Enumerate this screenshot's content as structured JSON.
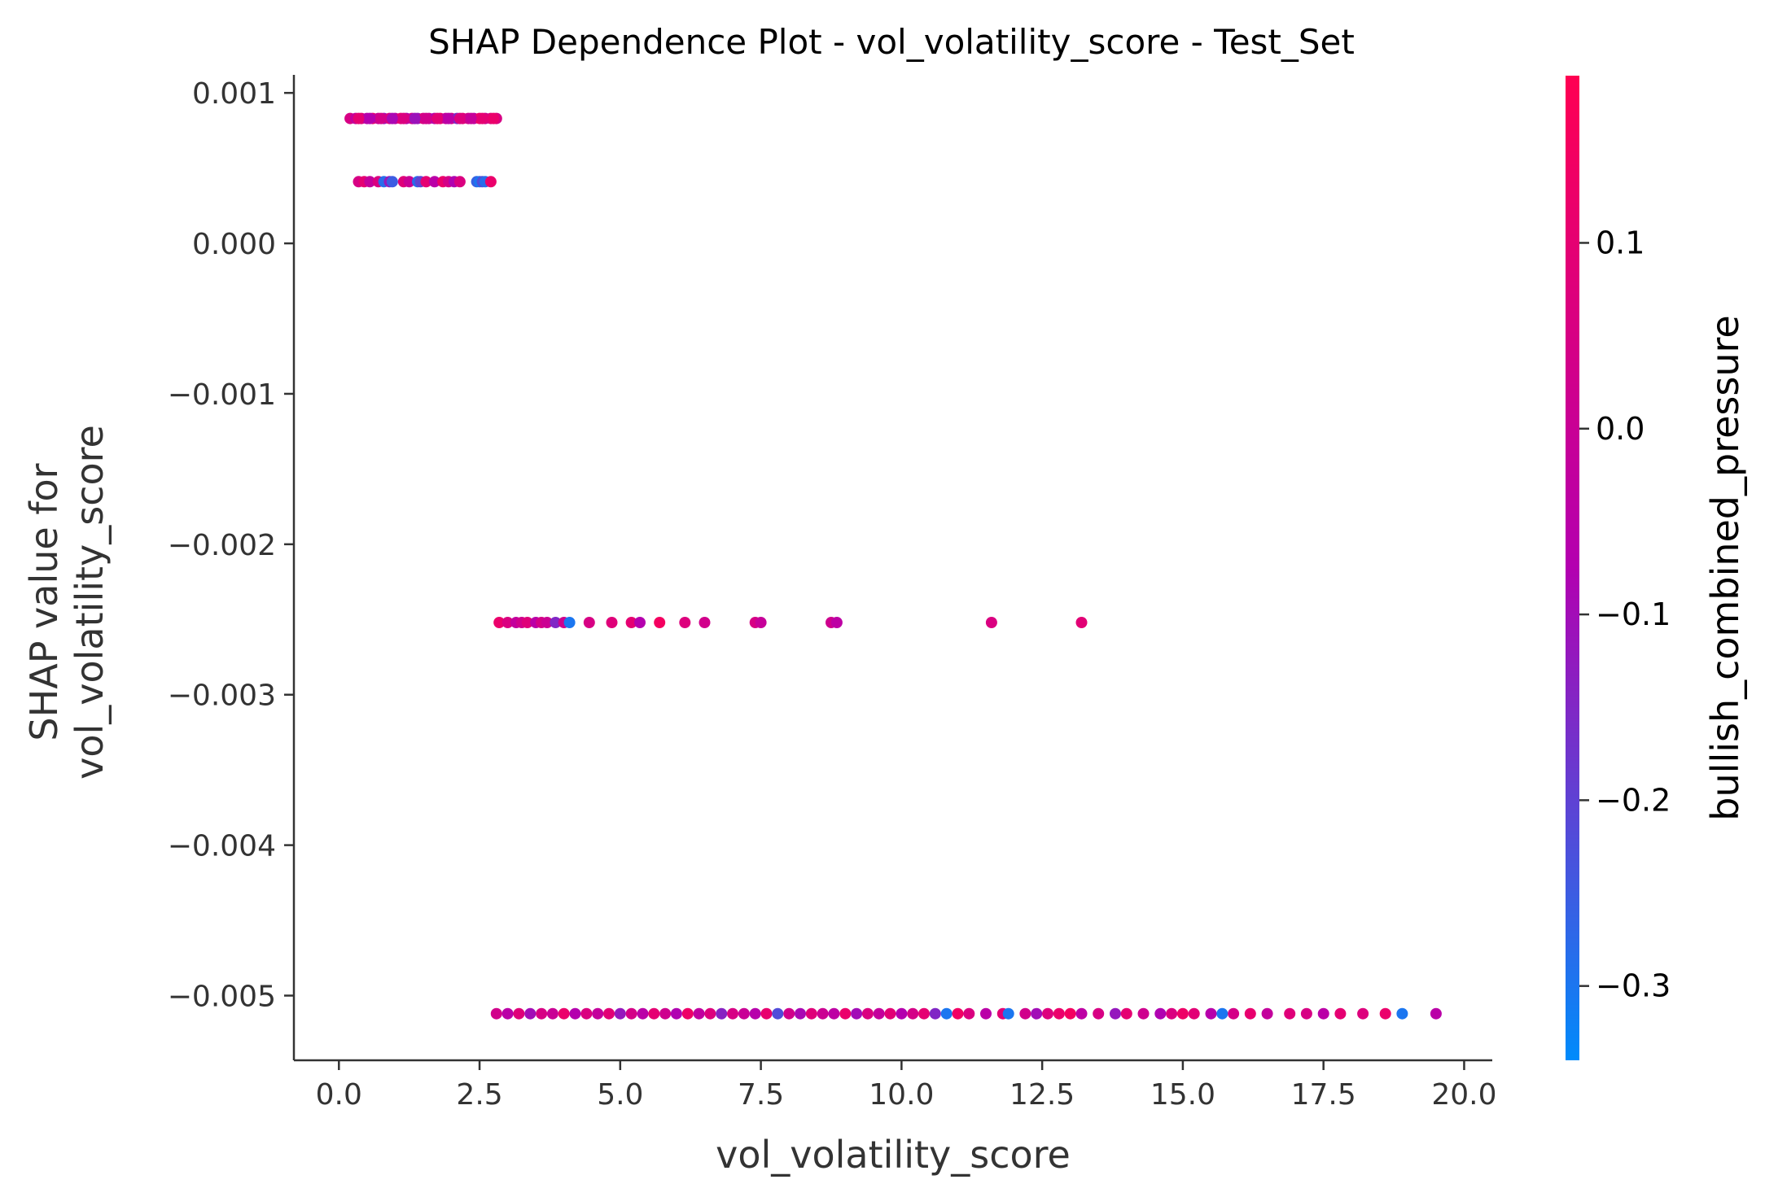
{
  "chart_data": {
    "type": "scatter",
    "title": "SHAP Dependence Plot - vol_volatility_score - Test_Set",
    "xlabel": "vol_volatility_score",
    "ylabel_lines": [
      "SHAP value for",
      "vol_volatility_score"
    ],
    "colorbar_label": "bullish_combined_pressure",
    "xlim": [
      -0.8,
      20.5
    ],
    "ylim": [
      -0.00543,
      0.00112
    ],
    "x_ticks": [
      0.0,
      2.5,
      5.0,
      7.5,
      10.0,
      12.5,
      15.0,
      17.5,
      20.0
    ],
    "x_tick_labels": [
      "0.0",
      "2.5",
      "5.0",
      "7.5",
      "10.0",
      "12.5",
      "15.0",
      "17.5",
      "20.0"
    ],
    "y_ticks": [
      0.001,
      0.0,
      -0.001,
      -0.002,
      -0.003,
      -0.004,
      -0.005
    ],
    "y_tick_labels": [
      "0.001",
      "0.000",
      "−0.001",
      "−0.002",
      "−0.003",
      "−0.004",
      "−0.005"
    ],
    "colorbar_range": [
      -0.34,
      0.19
    ],
    "colorbar_ticks": [
      0.1,
      0.0,
      -0.1,
      -0.2,
      -0.3
    ],
    "colorbar_tick_labels": [
      "0.1",
      "0.0",
      "−0.1",
      "−0.2",
      "−0.3"
    ],
    "colors": {
      "low": "#008bfb",
      "mid": "#b300b0",
      "high": "#ff0052"
    },
    "grid": false,
    "series": [
      {
        "y": 0.00083,
        "points": [
          [
            0.2,
            0.05
          ],
          [
            0.3,
            -0.02
          ],
          [
            0.4,
            0.08
          ],
          [
            0.5,
            -0.05
          ],
          [
            0.6,
            0.12
          ],
          [
            0.7,
            0.0
          ],
          [
            0.8,
            -0.1
          ],
          [
            0.9,
            0.07
          ],
          [
            1.0,
            -0.03
          ],
          [
            1.1,
            0.1
          ],
          [
            1.2,
            -0.08
          ],
          [
            1.3,
            0.02
          ],
          [
            1.4,
            -0.12
          ],
          [
            1.5,
            0.06
          ],
          [
            1.6,
            0.0
          ],
          [
            1.7,
            -0.06
          ],
          [
            1.8,
            0.11
          ],
          [
            1.9,
            -0.02
          ],
          [
            2.0,
            0.04
          ],
          [
            2.1,
            -0.15
          ],
          [
            2.2,
            0.09
          ],
          [
            2.3,
            0.03
          ],
          [
            2.4,
            -0.04
          ],
          [
            2.5,
            0.13
          ],
          [
            2.6,
            0.01
          ],
          [
            2.7,
            0.08
          ],
          [
            2.8,
            0.05
          ],
          [
            0.35,
            0.1
          ],
          [
            0.55,
            -0.07
          ],
          [
            0.75,
            0.04
          ],
          [
            0.95,
            -0.09
          ],
          [
            1.15,
            0.06
          ],
          [
            1.35,
            -0.11
          ],
          [
            1.55,
            0.03
          ],
          [
            1.75,
            0.09
          ],
          [
            1.95,
            -0.05
          ],
          [
            2.15,
            0.07
          ],
          [
            2.35,
            -0.01
          ],
          [
            2.55,
            0.1
          ],
          [
            2.75,
            0.12
          ]
        ]
      },
      {
        "y": 0.00041,
        "points": [
          [
            0.35,
            0.05
          ],
          [
            0.45,
            0.1
          ],
          [
            0.55,
            -0.02
          ],
          [
            0.7,
            0.06
          ],
          [
            0.8,
            -0.28
          ],
          [
            0.9,
            -0.12
          ],
          [
            0.95,
            -0.25
          ],
          [
            1.15,
            0.08
          ],
          [
            1.25,
            0.0
          ],
          [
            1.4,
            -0.28
          ],
          [
            1.45,
            -0.2
          ],
          [
            1.55,
            0.1
          ],
          [
            1.7,
            -0.05
          ],
          [
            1.85,
            0.12
          ],
          [
            1.95,
            0.04
          ],
          [
            2.05,
            -0.08
          ],
          [
            2.15,
            0.06
          ],
          [
            2.45,
            -0.26
          ],
          [
            2.5,
            -0.3
          ],
          [
            2.55,
            -0.22
          ],
          [
            2.6,
            -0.28
          ],
          [
            2.7,
            0.12
          ]
        ]
      },
      {
        "y": -0.00252,
        "points": [
          [
            2.85,
            0.12
          ],
          [
            3.0,
            0.06
          ],
          [
            3.15,
            -0.02
          ],
          [
            3.25,
            0.03
          ],
          [
            3.35,
            0.08
          ],
          [
            3.5,
            -0.05
          ],
          [
            3.6,
            0.04
          ],
          [
            3.7,
            0.01
          ],
          [
            3.85,
            -0.15
          ],
          [
            4.0,
            0.02
          ],
          [
            4.1,
            -0.3
          ],
          [
            4.45,
            0.05
          ],
          [
            4.85,
            0.08
          ],
          [
            5.2,
            0.1
          ],
          [
            5.35,
            -0.07
          ],
          [
            5.7,
            0.15
          ],
          [
            6.15,
            0.07
          ],
          [
            6.5,
            0.03
          ],
          [
            7.4,
            0.05
          ],
          [
            7.5,
            -0.01
          ],
          [
            8.75,
            0.02
          ],
          [
            8.85,
            -0.04
          ],
          [
            11.6,
            0.06
          ],
          [
            13.2,
            0.09
          ]
        ]
      },
      {
        "y": -0.00512,
        "points": [
          [
            2.8,
            0.03
          ],
          [
            3.0,
            -0.05
          ],
          [
            3.2,
            0.08
          ],
          [
            3.4,
            -0.1
          ],
          [
            3.6,
            0.05
          ],
          [
            3.8,
            0.0
          ],
          [
            4.0,
            0.12
          ],
          [
            4.2,
            -0.07
          ],
          [
            4.4,
            0.06
          ],
          [
            4.6,
            -0.02
          ],
          [
            4.8,
            0.09
          ],
          [
            5.0,
            -0.12
          ],
          [
            5.2,
            0.04
          ],
          [
            5.4,
            -0.05
          ],
          [
            5.6,
            0.1
          ],
          [
            5.8,
            0.02
          ],
          [
            6.0,
            -0.08
          ],
          [
            6.2,
            0.13
          ],
          [
            6.4,
            -0.03
          ],
          [
            6.6,
            0.07
          ],
          [
            6.8,
            -0.14
          ],
          [
            7.0,
            0.05
          ],
          [
            7.2,
            0.0
          ],
          [
            7.4,
            -0.06
          ],
          [
            7.6,
            0.11
          ],
          [
            7.8,
            -0.22
          ],
          [
            8.0,
            0.03
          ],
          [
            8.2,
            -0.09
          ],
          [
            8.4,
            0.08
          ],
          [
            8.6,
            0.01
          ],
          [
            8.8,
            -0.04
          ],
          [
            9.0,
            0.12
          ],
          [
            9.2,
            -0.1
          ],
          [
            9.4,
            0.06
          ],
          [
            9.6,
            -0.02
          ],
          [
            9.8,
            0.09
          ],
          [
            10.0,
            -0.07
          ],
          [
            10.2,
            0.04
          ],
          [
            10.4,
            0.1
          ],
          [
            10.6,
            -0.15
          ],
          [
            10.8,
            -0.3
          ],
          [
            11.0,
            0.14
          ],
          [
            11.2,
            0.06
          ],
          [
            11.5,
            -0.05
          ],
          [
            11.8,
            0.09
          ],
          [
            11.9,
            -0.3
          ],
          [
            12.2,
            0.03
          ],
          [
            12.4,
            -0.1
          ],
          [
            12.6,
            0.07
          ],
          [
            12.8,
            0.12
          ],
          [
            13.0,
            0.15
          ],
          [
            13.2,
            -0.04
          ],
          [
            13.5,
            0.05
          ],
          [
            13.8,
            -0.12
          ],
          [
            14.0,
            0.1
          ],
          [
            14.3,
            0.02
          ],
          [
            14.6,
            -0.08
          ],
          [
            14.8,
            0.06
          ],
          [
            15.0,
            0.13
          ],
          [
            15.2,
            0.09
          ],
          [
            15.5,
            -0.06
          ],
          [
            15.7,
            -0.3
          ],
          [
            15.9,
            0.04
          ],
          [
            16.2,
            0.11
          ],
          [
            16.5,
            -0.02
          ],
          [
            16.9,
            0.08
          ],
          [
            17.2,
            0.05
          ],
          [
            17.5,
            -0.05
          ],
          [
            17.8,
            0.1
          ],
          [
            18.2,
            0.07
          ],
          [
            18.6,
            0.12
          ],
          [
            18.9,
            -0.3
          ],
          [
            19.5,
            -0.05
          ]
        ]
      }
    ]
  }
}
